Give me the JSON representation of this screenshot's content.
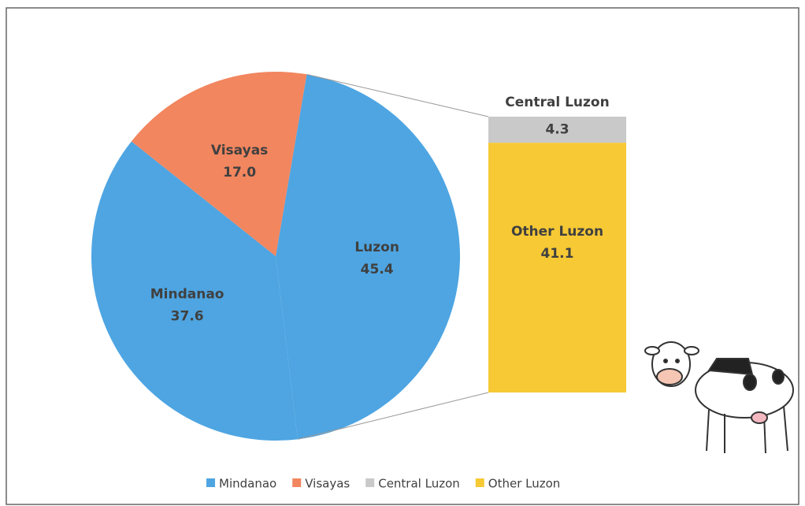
{
  "chart_data": [
    {
      "type": "pie",
      "categories": [
        "Luzon",
        "Mindanao",
        "Visayas"
      ],
      "values": [
        45.4,
        37.6,
        17.0
      ],
      "value_labels": [
        "45.4",
        "37.6",
        "17.0"
      ],
      "colors": [
        "#4ea5e2",
        "#4ea5e2",
        "#f2865f"
      ]
    },
    {
      "type": "stacked-bar",
      "categories": [
        "Central Luzon",
        "Other Luzon"
      ],
      "values": [
        4.3,
        41.1
      ],
      "value_labels": [
        "4.3",
        "41.1"
      ],
      "colors": [
        "#c9c9c9",
        "#f6c935"
      ]
    }
  ]
}
